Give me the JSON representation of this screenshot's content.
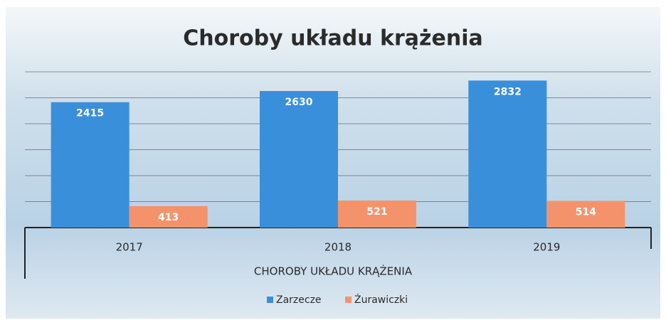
{
  "chart_data": {
    "type": "bar",
    "title": "Choroby układu krążenia",
    "x_label": "CHOROBY UKŁADU KRĄŻENIA",
    "categories": [
      "2017",
      "2018",
      "2019"
    ],
    "series": [
      {
        "name": "Zarzecze",
        "color": "#3a8fdb",
        "values": [
          2415,
          2630,
          2832
        ]
      },
      {
        "name": "Żurawiczki",
        "color": "#f4936b",
        "values": [
          413,
          521,
          514
        ]
      }
    ],
    "ylim": [
      0,
      3000
    ],
    "yticks": [
      0,
      500,
      1000,
      1500,
      2000,
      2500,
      3000
    ],
    "grid": true,
    "legend": "bottom"
  }
}
